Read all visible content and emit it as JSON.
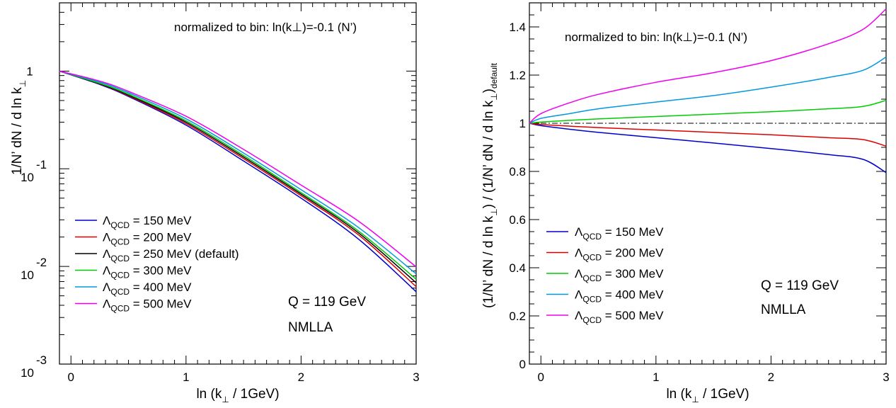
{
  "chart_data": [
    {
      "type": "line",
      "scale": "log-y",
      "annotation": "normalized to bin: ln(k⊥)=-0.1 (N’)",
      "xlabel": "ln (k⊥ / 1GeV)",
      "ylabel": "1/N’ dN / d ln k⊥",
      "xlim": [
        -0.1,
        3.0
      ],
      "ylim": [
        0.001,
        5
      ],
      "x_ticks": [
        "0",
        "1",
        "2",
        "3"
      ],
      "y_ticks": [
        {
          "base": "1",
          "exp": ""
        },
        {
          "base": "10",
          "exp": "-1"
        },
        {
          "base": "10",
          "exp": "-2"
        },
        {
          "base": "10",
          "exp": "-3"
        }
      ],
      "info": [
        "Q = 119 GeV",
        "NMLLA"
      ],
      "x": [
        -0.1,
        0.25,
        0.5,
        1.0,
        1.5,
        2.0,
        2.5,
        3.0
      ],
      "series": [
        {
          "name": "150 MeV",
          "color": "#0000cc",
          "values": [
            1.0,
            0.73,
            0.55,
            0.28,
            0.12,
            0.05,
            0.019,
            0.0055
          ]
        },
        {
          "name": "200 MeV",
          "color": "#dd0000",
          "values": [
            1.0,
            0.74,
            0.56,
            0.29,
            0.127,
            0.053,
            0.021,
            0.0062
          ]
        },
        {
          "name": "250 MeV (default)",
          "color": "#000000",
          "values": [
            1.0,
            0.745,
            0.57,
            0.3,
            0.132,
            0.055,
            0.022,
            0.0068
          ]
        },
        {
          "name": "300 MeV",
          "color": "#00cc00",
          "values": [
            1.0,
            0.75,
            0.58,
            0.31,
            0.137,
            0.057,
            0.023,
            0.0074
          ]
        },
        {
          "name": "400 MeV",
          "color": "#0099dd",
          "values": [
            1.0,
            0.77,
            0.6,
            0.325,
            0.145,
            0.061,
            0.025,
            0.0084
          ]
        },
        {
          "name": "500 MeV",
          "color": "#ee00ee",
          "values": [
            1.0,
            0.79,
            0.62,
            0.345,
            0.158,
            0.068,
            0.029,
            0.0099
          ]
        }
      ],
      "legend_placement": "lower-left"
    },
    {
      "type": "line",
      "annotation": "normalized to bin: ln(k⊥)=-0.1 (N’)",
      "xlabel": "ln (k⊥ / 1GeV)",
      "ylabel": "(1/N’ dN / d ln k⊥) / (1/N’ dN / d ln k⊥)default",
      "xlim": [
        -0.1,
        3.0
      ],
      "ylim": [
        0,
        1.5
      ],
      "x_ticks": [
        "0",
        "1",
        "2",
        "3"
      ],
      "y_ticks": [
        "0",
        "0.2",
        "0.4",
        "0.6",
        "0.8",
        "1",
        "1.2",
        "1.4"
      ],
      "info": [
        "Q = 119 GeV",
        "NMLLA"
      ],
      "reference_line": 1.0,
      "x": [
        -0.1,
        0.0,
        0.25,
        0.5,
        1.0,
        1.5,
        2.0,
        2.5,
        2.8,
        3.0
      ],
      "series": [
        {
          "name": "150 MeV",
          "color": "#0000cc",
          "values": [
            1.0,
            0.99,
            0.975,
            0.962,
            0.94,
            0.918,
            0.895,
            0.87,
            0.85,
            0.795
          ]
        },
        {
          "name": "200 MeV",
          "color": "#dd0000",
          "values": [
            1.0,
            0.995,
            0.988,
            0.982,
            0.972,
            0.962,
            0.952,
            0.94,
            0.932,
            0.905
          ]
        },
        {
          "name": "300 MeV",
          "color": "#00cc00",
          "values": [
            1.0,
            1.005,
            1.012,
            1.018,
            1.028,
            1.038,
            1.048,
            1.06,
            1.07,
            1.095
          ]
        },
        {
          "name": "400 MeV",
          "color": "#0099dd",
          "values": [
            1.0,
            1.02,
            1.04,
            1.06,
            1.088,
            1.115,
            1.15,
            1.19,
            1.22,
            1.275
          ]
        },
        {
          "name": "500 MeV",
          "color": "#ee00ee",
          "values": [
            1.0,
            1.04,
            1.085,
            1.12,
            1.17,
            1.21,
            1.26,
            1.33,
            1.39,
            1.475
          ]
        }
      ],
      "legend_placement": "lower-left"
    }
  ]
}
